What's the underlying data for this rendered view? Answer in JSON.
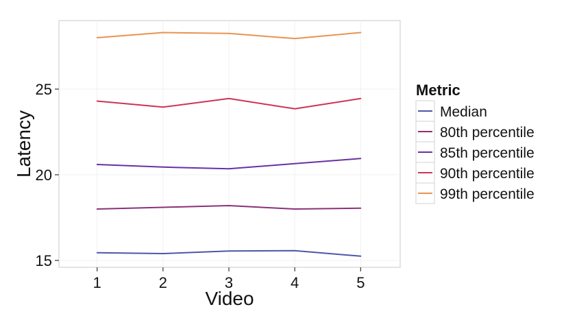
{
  "chart_data": {
    "type": "line",
    "title": "",
    "xlabel": "Video",
    "ylabel": "Latency",
    "x": [
      1,
      2,
      3,
      4,
      5
    ],
    "x_ticks": [
      "1",
      "2",
      "3",
      "4",
      "5"
    ],
    "y_ticks": [
      "15",
      "20",
      "25"
    ],
    "y_tick_values": [
      15,
      20,
      25
    ],
    "xlim": [
      0.42,
      5.6
    ],
    "ylim": [
      14.6,
      29.0
    ],
    "grid": true,
    "legend": {
      "title": "Metric",
      "position": "right"
    },
    "series": [
      {
        "name": "Median",
        "color": "#4b56a8",
        "values": [
          15.45,
          15.4,
          15.55,
          15.57,
          15.25
        ]
      },
      {
        "name": "80th percentile",
        "color": "#8b2f7a",
        "values": [
          18.0,
          18.1,
          18.2,
          18.0,
          18.05
        ]
      },
      {
        "name": "85th percentile",
        "color": "#6a2fa3",
        "values": [
          20.6,
          20.45,
          20.35,
          20.65,
          20.95
        ]
      },
      {
        "name": "90th percentile",
        "color": "#cc3355",
        "values": [
          24.3,
          23.95,
          24.45,
          23.85,
          24.45
        ]
      },
      {
        "name": "99th percentile",
        "color": "#e89350",
        "values": [
          28.0,
          28.3,
          28.25,
          27.95,
          28.3
        ]
      }
    ]
  }
}
